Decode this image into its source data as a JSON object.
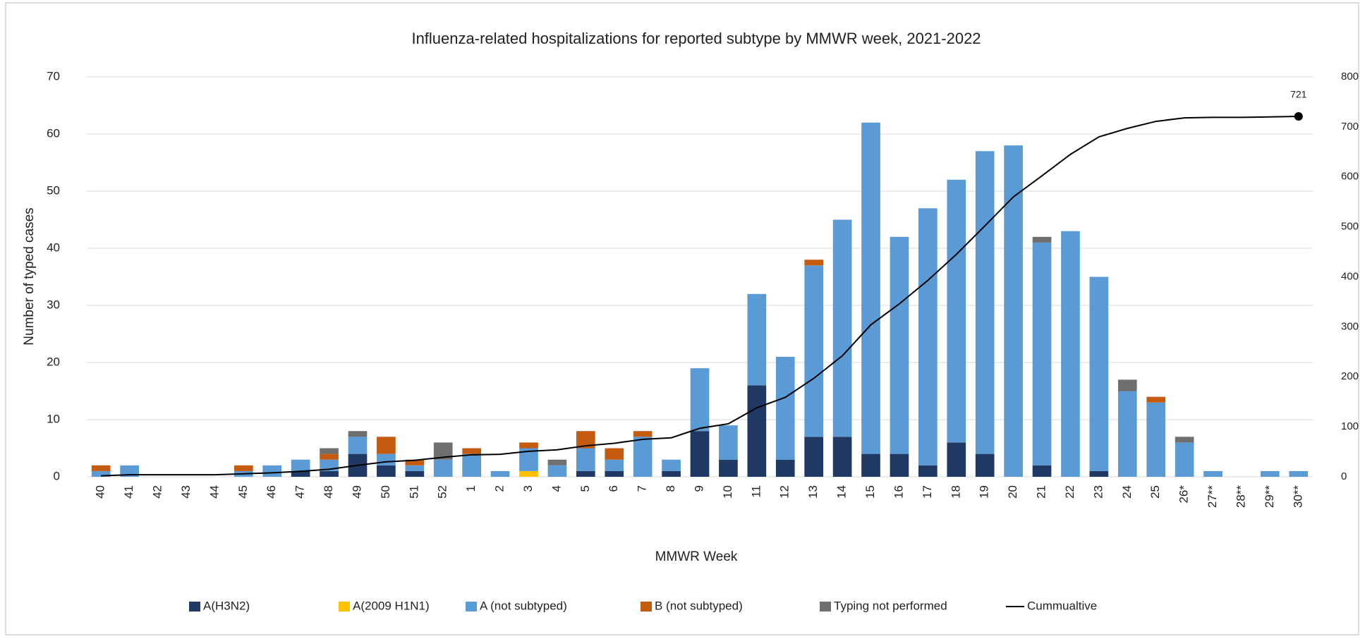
{
  "chart_data": {
    "type": "bar",
    "stacked": true,
    "title": "Influenza-related hospitalizations for reported subtype by MMWR week, 2021-2022",
    "x_label": "MMWR Week",
    "y_label": "Number of typed cases",
    "categories": [
      "40",
      "41",
      "42",
      "43",
      "44",
      "45",
      "46",
      "47",
      "48",
      "49",
      "50",
      "51",
      "52",
      "1",
      "2",
      "3",
      "4",
      "5",
      "6",
      "7",
      "8",
      "9",
      "10",
      "11",
      "12",
      "13",
      "14",
      "15",
      "16",
      "17",
      "18",
      "19",
      "20",
      "21",
      "22",
      "23",
      "24",
      "25",
      "26*",
      "27**",
      "28**",
      "29**",
      "30**"
    ],
    "series": [
      {
        "name": "A(H3N2)",
        "color": "#203864",
        "values": [
          0,
          0,
          0,
          0,
          0,
          0,
          0,
          1,
          1,
          4,
          2,
          1,
          0,
          0,
          0,
          0,
          0,
          1,
          1,
          0,
          1,
          8,
          3,
          16,
          3,
          7,
          7,
          4,
          4,
          2,
          6,
          4,
          0,
          2,
          0,
          1,
          0,
          0,
          0,
          0,
          0,
          0,
          0
        ]
      },
      {
        "name": "A(2009 H1N1)",
        "color": "#ffc000",
        "values": [
          0,
          0,
          0,
          0,
          0,
          0,
          0,
          0,
          0,
          0,
          0,
          0,
          0,
          0,
          0,
          1,
          0,
          0,
          0,
          0,
          0,
          0,
          0,
          0,
          0,
          0,
          0,
          0,
          0,
          0,
          0,
          0,
          0,
          0,
          0,
          0,
          0,
          0,
          0,
          0,
          0,
          0,
          0
        ]
      },
      {
        "name": "A (not subtyped)",
        "color": "#5b9bd5",
        "values": [
          1,
          2,
          0,
          0,
          0,
          1,
          2,
          2,
          2,
          3,
          2,
          1,
          3,
          4,
          1,
          4,
          2,
          4,
          2,
          7,
          2,
          11,
          6,
          16,
          18,
          30,
          38,
          58,
          38,
          45,
          46,
          53,
          58,
          39,
          43,
          34,
          15,
          13,
          6,
          1,
          0,
          1,
          1
        ]
      },
      {
        "name": "B (not subtyped)",
        "color": "#c55a11",
        "values": [
          1,
          0,
          0,
          0,
          0,
          1,
          0,
          0,
          1,
          0,
          3,
          1,
          0,
          1,
          0,
          1,
          0,
          3,
          2,
          1,
          0,
          0,
          0,
          0,
          0,
          1,
          0,
          0,
          0,
          0,
          0,
          0,
          0,
          0,
          0,
          0,
          0,
          1,
          0,
          0,
          0,
          0,
          0
        ]
      },
      {
        "name": "Typing not performed",
        "color": "#6f6f6f",
        "values": [
          0,
          0,
          0,
          0,
          0,
          0,
          0,
          0,
          1,
          1,
          0,
          0,
          3,
          0,
          0,
          0,
          1,
          0,
          0,
          0,
          0,
          0,
          0,
          0,
          0,
          0,
          0,
          0,
          0,
          0,
          0,
          0,
          0,
          1,
          0,
          0,
          2,
          0,
          1,
          0,
          0,
          0,
          0
        ]
      },
      {
        "name": "Cummualtive",
        "color": "#000000",
        "type": "line",
        "axis": "y2",
        "values": [
          2,
          4,
          4,
          4,
          4,
          6,
          8,
          11,
          15,
          23,
          30,
          33,
          39,
          44,
          45,
          51,
          54,
          62,
          67,
          75,
          78,
          97,
          106,
          138,
          159,
          197,
          242,
          304,
          346,
          393,
          445,
          502,
          560,
          602,
          645,
          680,
          697,
          711,
          718,
          719,
          719,
          720,
          721
        ]
      }
    ],
    "ylim": [
      0,
      70
    ],
    "yticks": [
      0,
      10,
      20,
      30,
      40,
      50,
      60,
      70
    ],
    "y2lim": [
      0,
      800
    ],
    "y2ticks": [
      0,
      100,
      200,
      300,
      400,
      500,
      600,
      700,
      800
    ],
    "grid": true,
    "legend": "bottom"
  }
}
